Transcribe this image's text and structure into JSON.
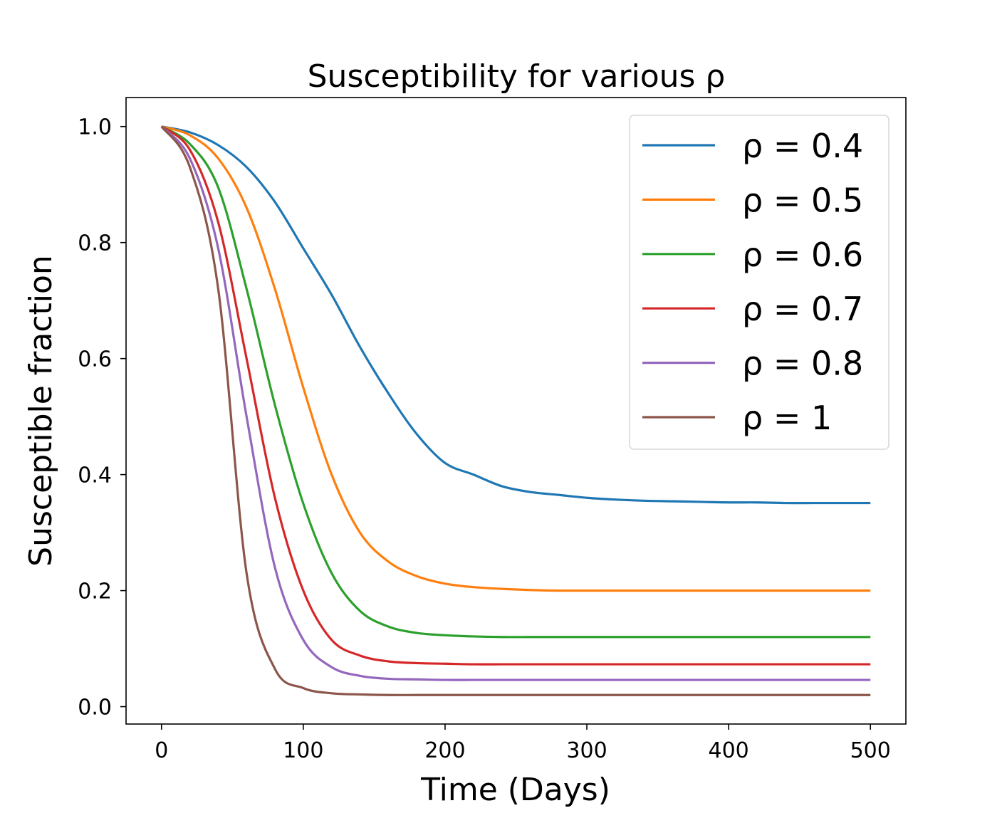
{
  "chart_data": {
    "type": "line",
    "title": "Susceptibility for various ρ",
    "xlabel": "Time (Days)",
    "ylabel": "Susceptible fraction",
    "xlim": [
      -25,
      525
    ],
    "ylim": [
      -0.03,
      1.05
    ],
    "xticks": [
      0,
      100,
      200,
      300,
      400,
      500
    ],
    "xtick_labels": [
      "0",
      "100",
      "200",
      "300",
      "400",
      "500"
    ],
    "yticks": [
      0.0,
      0.2,
      0.4,
      0.6,
      0.8,
      1.0
    ],
    "ytick_labels": [
      "0.0",
      "0.2",
      "0.4",
      "0.6",
      "0.8",
      "1.0"
    ],
    "grid": false,
    "legend_position": "top-right",
    "x": [
      0,
      20,
      40,
      60,
      80,
      100,
      120,
      140,
      160,
      180,
      200,
      220,
      240,
      260,
      280,
      300,
      320,
      340,
      360,
      380,
      400,
      420,
      440,
      460,
      480,
      500
    ],
    "series": [
      {
        "name": "ρ = 0.4",
        "color": "#1f77b4",
        "values": [
          1.0,
          0.99,
          0.968,
          0.93,
          0.87,
          0.79,
          0.71,
          0.62,
          0.54,
          0.47,
          0.42,
          0.4,
          0.38,
          0.37,
          0.365,
          0.36,
          0.357,
          0.355,
          0.354,
          0.353,
          0.352,
          0.352,
          0.351,
          0.351,
          0.351,
          0.351
        ]
      },
      {
        "name": "ρ = 0.5",
        "color": "#ff7f0e",
        "values": [
          1.0,
          0.985,
          0.945,
          0.86,
          0.72,
          0.55,
          0.4,
          0.3,
          0.25,
          0.225,
          0.212,
          0.206,
          0.203,
          0.201,
          0.2,
          0.2,
          0.2,
          0.2,
          0.2,
          0.2,
          0.2,
          0.2,
          0.2,
          0.2,
          0.2,
          0.2
        ]
      },
      {
        "name": "ρ = 0.6",
        "color": "#2ca02c",
        "values": [
          1.0,
          0.97,
          0.895,
          0.72,
          0.52,
          0.35,
          0.23,
          0.165,
          0.138,
          0.127,
          0.123,
          0.121,
          0.12,
          0.12,
          0.12,
          0.12,
          0.12,
          0.12,
          0.12,
          0.12,
          0.12,
          0.12,
          0.12,
          0.12,
          0.12,
          0.12
        ]
      },
      {
        "name": "ρ = 0.7",
        "color": "#d62728",
        "values": [
          1.0,
          0.96,
          0.835,
          0.6,
          0.36,
          0.2,
          0.115,
          0.088,
          0.078,
          0.075,
          0.074,
          0.073,
          0.073,
          0.073,
          0.073,
          0.073,
          0.073,
          0.073,
          0.073,
          0.073,
          0.073,
          0.073,
          0.073,
          0.073,
          0.073,
          0.073
        ]
      },
      {
        "name": "ρ = 0.8",
        "color": "#9467bd",
        "values": [
          1.0,
          0.945,
          0.79,
          0.5,
          0.24,
          0.115,
          0.068,
          0.053,
          0.048,
          0.047,
          0.046,
          0.046,
          0.046,
          0.046,
          0.046,
          0.046,
          0.046,
          0.046,
          0.046,
          0.046,
          0.046,
          0.046,
          0.046,
          0.046,
          0.046,
          0.046
        ]
      },
      {
        "name": "ρ = 1",
        "color": "#8c564b",
        "values": [
          1.0,
          0.93,
          0.72,
          0.23,
          0.065,
          0.032,
          0.023,
          0.021,
          0.02,
          0.02,
          0.02,
          0.02,
          0.02,
          0.02,
          0.02,
          0.02,
          0.02,
          0.02,
          0.02,
          0.02,
          0.02,
          0.02,
          0.02,
          0.02,
          0.02,
          0.02
        ]
      }
    ]
  }
}
